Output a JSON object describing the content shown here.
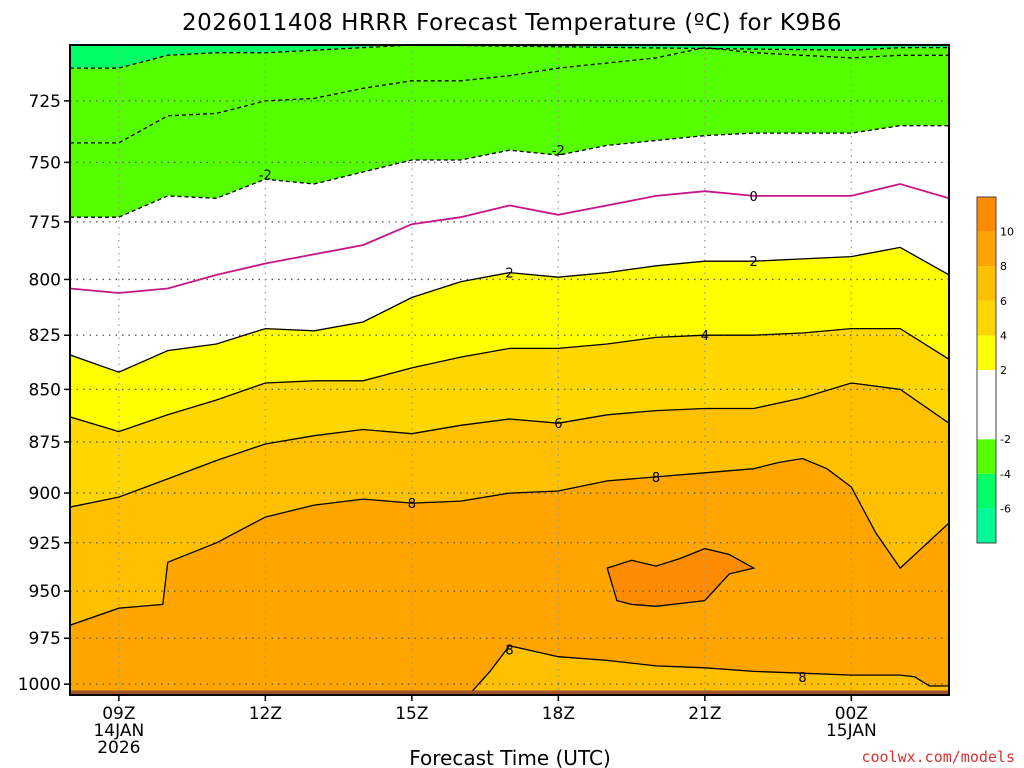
{
  "chart_data": {
    "type": "heatmap",
    "title": "2026011408 HRRR Forecast Temperature (ºC) for K9B6",
    "xlabel": "Forecast Time (UTC)",
    "ylabel": "",
    "credit": "coolwx.com/models",
    "x_range": [
      8,
      26
    ],
    "y_range": [
      703,
      1006
    ],
    "y_scale": "log",
    "y_reversed": true,
    "y_ticks": [
      725,
      750,
      775,
      800,
      825,
      850,
      875,
      900,
      925,
      950,
      975,
      1000
    ],
    "x_ticks": [
      {
        "x": 9,
        "lines": [
          "09Z",
          "14JAN",
          "2026"
        ]
      },
      {
        "x": 12,
        "lines": [
          "12Z"
        ]
      },
      {
        "x": 15,
        "lines": [
          "15Z"
        ]
      },
      {
        "x": 18,
        "lines": [
          "18Z"
        ]
      },
      {
        "x": 21,
        "lines": [
          "21Z"
        ]
      },
      {
        "x": 24,
        "lines": [
          "00Z",
          "15JAN"
        ]
      }
    ],
    "grid": true,
    "ground_color": "#a0522d",
    "colorbar": {
      "position": "right",
      "bins": [
        {
          "from": -8,
          "to": -6,
          "color": "#00fa9a"
        },
        {
          "from": -6,
          "to": -4,
          "color": "#00ff66"
        },
        {
          "from": -4,
          "to": -2,
          "color": "#55ff00"
        },
        {
          "from": -2,
          "to": 2,
          "color": "#ffffff"
        },
        {
          "from": 2,
          "to": 4,
          "color": "#ffff00"
        },
        {
          "from": 4,
          "to": 6,
          "color": "#ffd700"
        },
        {
          "from": 6,
          "to": 8,
          "color": "#ffc000"
        },
        {
          "from": 8,
          "to": 10,
          "color": "#ffa500"
        },
        {
          "from": 10,
          "to": 12,
          "color": "#ff8c00"
        }
      ],
      "tick_labels": [
        "-6",
        "-4",
        "-2",
        "2",
        "4",
        "6",
        "8",
        "10"
      ]
    },
    "contours": [
      {
        "level": -4,
        "style": "dashed",
        "color": "#000000",
        "label": "",
        "points": [
          [
            8,
            712
          ],
          [
            9,
            712
          ],
          [
            10,
            707
          ],
          [
            11,
            706
          ],
          [
            12,
            706
          ],
          [
            13,
            705
          ],
          [
            15,
            703
          ],
          [
            24,
            705
          ],
          [
            25,
            704
          ],
          [
            26,
            704
          ]
        ]
      },
      {
        "level": -2,
        "style": "dashed",
        "color": "#000000",
        "label": "",
        "points": [
          [
            8,
            742
          ],
          [
            9,
            742
          ],
          [
            10,
            731
          ],
          [
            11,
            730
          ],
          [
            12,
            725
          ],
          [
            13,
            724
          ],
          [
            14,
            720
          ],
          [
            15,
            717
          ],
          [
            16,
            717
          ],
          [
            17,
            715
          ],
          [
            18,
            712
          ],
          [
            19,
            710
          ],
          [
            20,
            708
          ],
          [
            21,
            704
          ],
          [
            22,
            706
          ],
          [
            23,
            707
          ],
          [
            24,
            708
          ],
          [
            25,
            707
          ],
          [
            26,
            707
          ]
        ]
      },
      {
        "level": -2,
        "style": "dashed",
        "color": "#000000",
        "label": "-2",
        "points": [
          [
            8,
            773
          ],
          [
            9,
            773
          ],
          [
            10,
            764
          ],
          [
            11,
            765
          ],
          [
            12,
            757
          ],
          [
            13,
            759
          ],
          [
            14,
            754
          ],
          [
            15,
            749
          ],
          [
            16,
            749
          ],
          [
            17,
            745
          ],
          [
            18,
            747
          ],
          [
            19,
            743
          ],
          [
            20,
            741
          ],
          [
            21,
            739
          ],
          [
            22,
            738
          ],
          [
            23,
            738
          ],
          [
            24,
            738
          ],
          [
            25,
            735
          ],
          [
            26,
            735
          ]
        ],
        "label_points": [
          [
            12,
            755
          ],
          [
            18,
            745
          ]
        ]
      },
      {
        "level": 0,
        "style": "solid",
        "color": "#c71585",
        "label": "0",
        "points": [
          [
            8,
            804
          ],
          [
            9,
            806
          ],
          [
            10,
            804
          ],
          [
            11,
            798
          ],
          [
            12,
            793
          ],
          [
            13,
            789
          ],
          [
            14,
            785
          ],
          [
            15,
            776
          ],
          [
            16,
            773
          ],
          [
            17,
            768
          ],
          [
            18,
            772
          ],
          [
            19,
            768
          ],
          [
            20,
            764
          ],
          [
            21,
            762
          ],
          [
            22,
            764
          ],
          [
            23,
            764
          ],
          [
            24,
            764
          ],
          [
            25,
            759
          ],
          [
            26,
            765
          ]
        ],
        "label_points": [
          [
            22,
            764
          ]
        ]
      },
      {
        "level": 2,
        "style": "solid",
        "color": "#000000",
        "label": "2",
        "points": [
          [
            8,
            834
          ],
          [
            9,
            842
          ],
          [
            10,
            832
          ],
          [
            11,
            829
          ],
          [
            12,
            822
          ],
          [
            13,
            823
          ],
          [
            14,
            819
          ],
          [
            15,
            808
          ],
          [
            16,
            801
          ],
          [
            17,
            797
          ],
          [
            18,
            799
          ],
          [
            19,
            797
          ],
          [
            20,
            794
          ],
          [
            21,
            792
          ],
          [
            22,
            792
          ],
          [
            23,
            791
          ],
          [
            24,
            790
          ],
          [
            25,
            786
          ],
          [
            26,
            798
          ]
        ],
        "label_points": [
          [
            17,
            797
          ],
          [
            22,
            792
          ]
        ]
      },
      {
        "level": 4,
        "style": "solid",
        "color": "#000000",
        "label": "4",
        "points": [
          [
            8,
            863
          ],
          [
            9,
            870
          ],
          [
            10,
            862
          ],
          [
            11,
            855
          ],
          [
            12,
            847
          ],
          [
            13,
            846
          ],
          [
            14,
            846
          ],
          [
            15,
            840
          ],
          [
            16,
            835
          ],
          [
            17,
            831
          ],
          [
            18,
            831
          ],
          [
            19,
            829
          ],
          [
            20,
            826
          ],
          [
            21,
            825
          ],
          [
            22,
            825
          ],
          [
            23,
            824
          ],
          [
            24,
            822
          ],
          [
            25,
            822
          ],
          [
            26,
            836
          ]
        ],
        "label_points": [
          [
            21,
            825
          ]
        ]
      },
      {
        "level": 6,
        "style": "solid",
        "color": "#000000",
        "label": "6",
        "points": [
          [
            8,
            907
          ],
          [
            9,
            902
          ],
          [
            10,
            893
          ],
          [
            11,
            884
          ],
          [
            12,
            876
          ],
          [
            13,
            872
          ],
          [
            14,
            869
          ],
          [
            15,
            871
          ],
          [
            16,
            867
          ],
          [
            17,
            864
          ],
          [
            18,
            866
          ],
          [
            19,
            862
          ],
          [
            20,
            860
          ],
          [
            21,
            859
          ],
          [
            22,
            859
          ],
          [
            23,
            854
          ],
          [
            24,
            847
          ],
          [
            25,
            850
          ],
          [
            26,
            866
          ]
        ],
        "label_points": [
          [
            18,
            866
          ]
        ]
      },
      {
        "level": 8,
        "style": "solid",
        "color": "#000000",
        "label": "8",
        "points": [
          [
            8,
            968
          ],
          [
            9,
            959
          ],
          [
            9.9,
            957
          ],
          [
            10,
            935
          ],
          [
            11,
            925
          ],
          [
            12,
            912
          ],
          [
            13,
            906
          ],
          [
            14,
            903
          ],
          [
            15,
            905
          ],
          [
            16,
            904
          ],
          [
            17,
            900
          ],
          [
            18,
            899
          ],
          [
            19,
            894
          ],
          [
            20,
            892
          ],
          [
            21,
            890
          ],
          [
            22,
            888
          ],
          [
            22.5,
            885
          ],
          [
            23,
            883
          ],
          [
            23.5,
            888
          ],
          [
            24,
            897
          ],
          [
            24.5,
            920
          ],
          [
            25,
            938
          ],
          [
            26,
            915
          ]
        ],
        "label_points": [
          [
            15,
            905
          ],
          [
            20,
            892
          ]
        ]
      },
      {
        "level": 10,
        "style": "solid",
        "color": "#000000",
        "label": "",
        "closed": true,
        "points": [
          [
            19,
            938
          ],
          [
            19.5,
            934
          ],
          [
            20,
            937
          ],
          [
            20.5,
            933
          ],
          [
            21,
            928
          ],
          [
            21.5,
            931
          ],
          [
            22,
            938
          ],
          [
            21.5,
            941
          ],
          [
            21,
            955
          ],
          [
            20,
            958
          ],
          [
            19.5,
            957
          ],
          [
            19.2,
            955
          ]
        ]
      },
      {
        "level": 8,
        "style": "solid",
        "color": "#000000",
        "label": "8",
        "points": [
          [
            15.8,
            1006
          ],
          [
            16.2,
            1005
          ],
          [
            16.6,
            993
          ],
          [
            17,
            979
          ],
          [
            17.5,
            982
          ],
          [
            18,
            985
          ],
          [
            19,
            987
          ],
          [
            20,
            990
          ],
          [
            21,
            991
          ],
          [
            22,
            993
          ],
          [
            23,
            994
          ],
          [
            24,
            995
          ],
          [
            25,
            995
          ],
          [
            25.3,
            996
          ],
          [
            25.6,
            1001
          ],
          [
            26,
            1001
          ]
        ],
        "label_points": [
          [
            17,
            981
          ],
          [
            23,
            996
          ]
        ]
      }
    ]
  }
}
